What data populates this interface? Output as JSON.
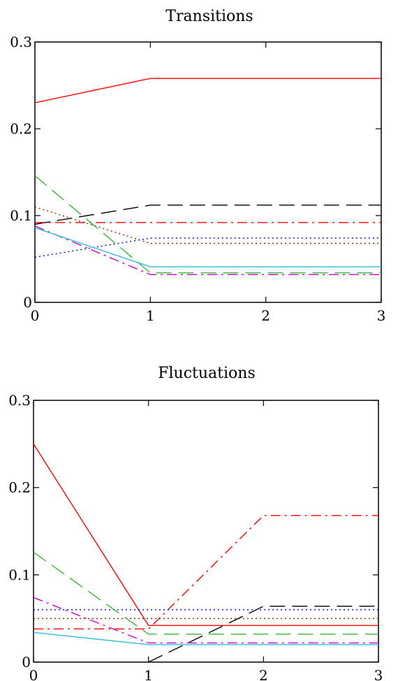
{
  "chart_data": [
    {
      "type": "line",
      "title": "Transitions",
      "xlabel": "",
      "ylabel": "",
      "xlim": [
        0,
        3
      ],
      "ylim": [
        0,
        0.3
      ],
      "xticks": [
        "0",
        "1",
        "2",
        "3"
      ],
      "yticks": [
        "0",
        "0.1",
        "0.2",
        "0.3"
      ],
      "x": [
        0,
        1,
        2,
        3
      ],
      "grid": false,
      "series": [
        {
          "color": "#ff0000",
          "style": "solid",
          "values": [
            0.23,
            0.258,
            0.258,
            0.258
          ]
        },
        {
          "color": "#000000",
          "style": "longdash",
          "values": [
            0.09,
            0.112,
            0.112,
            0.112
          ]
        },
        {
          "color": "#ff0000",
          "style": "dashdot",
          "values": [
            0.092,
            0.092,
            0.092,
            0.092
          ]
        },
        {
          "color": "#0000cc",
          "style": "dotted",
          "values": [
            0.052,
            0.074,
            0.074,
            0.074
          ]
        },
        {
          "color": "#8b2500",
          "style": "dotted",
          "values": [
            0.11,
            0.068,
            0.068,
            0.068
          ]
        },
        {
          "color": "#3cb43c",
          "style": "longdash",
          "values": [
            0.146,
            0.034,
            0.034,
            0.034
          ]
        },
        {
          "color": "#cc00cc",
          "style": "dashdot",
          "values": [
            0.088,
            0.032,
            0.032,
            0.032
          ]
        },
        {
          "color": "#33bbdd",
          "style": "solid",
          "values": [
            0.086,
            0.041,
            0.041,
            0.041
          ]
        }
      ]
    },
    {
      "type": "line",
      "title": "Fluctuations",
      "xlabel": "",
      "ylabel": "",
      "xlim": [
        0,
        3
      ],
      "ylim": [
        0,
        0.3
      ],
      "xticks": [
        "0",
        "1",
        "2",
        "3"
      ],
      "yticks": [
        "0",
        "0.1",
        "0.2",
        "0.3"
      ],
      "x": [
        0,
        1,
        2,
        3
      ],
      "grid": false,
      "series": [
        {
          "color": "#ff0000",
          "style": "solid",
          "values": [
            0.25,
            0.042,
            0.042,
            0.042
          ]
        },
        {
          "color": "#ff0000",
          "style": "dashdot",
          "values": [
            0.038,
            0.038,
            0.168,
            0.168
          ]
        },
        {
          "color": "#000000",
          "style": "longdash",
          "values": [
            null,
            0.0,
            0.064,
            0.064
          ]
        },
        {
          "color": "#0000cc",
          "style": "dotted",
          "values": [
            0.06,
            0.06,
            0.06,
            0.06
          ]
        },
        {
          "color": "#8b2500",
          "style": "dotted",
          "values": [
            0.05,
            0.05,
            0.05,
            0.05
          ]
        },
        {
          "color": "#3cb43c",
          "style": "longdash",
          "values": [
            0.126,
            0.032,
            0.032,
            0.032
          ]
        },
        {
          "color": "#cc00cc",
          "style": "dashdot",
          "values": [
            0.074,
            0.022,
            0.022,
            0.022
          ]
        },
        {
          "color": "#33bbdd",
          "style": "solid",
          "values": [
            0.034,
            0.02,
            0.02,
            0.02
          ]
        }
      ]
    }
  ]
}
